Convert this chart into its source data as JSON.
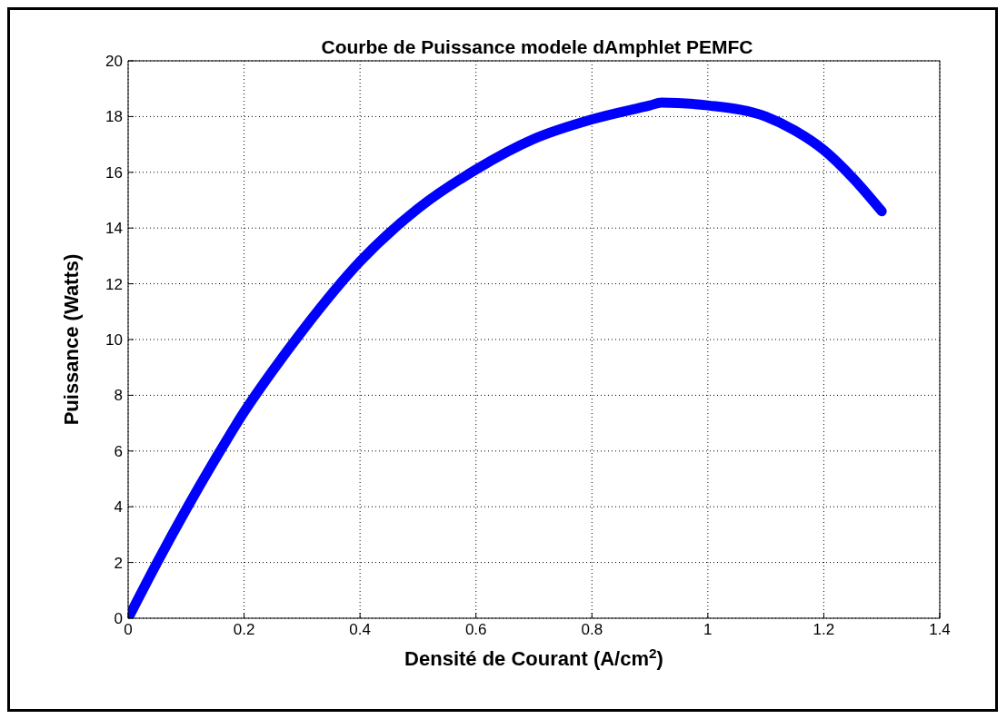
{
  "chart_data": {
    "type": "line",
    "title": "Courbe de Puissance modele dAmphlet PEMFC",
    "xlabel": "Densité de Courant (A/cm$^{2}$)",
    "ylabel": "Puissance (Watts)",
    "x": [
      0,
      0.05,
      0.1,
      0.15,
      0.2,
      0.25,
      0.3,
      0.4,
      0.5,
      0.6,
      0.7,
      0.8,
      0.9,
      0.92,
      1.0,
      1.1,
      1.15,
      1.2,
      1.25,
      1.3
    ],
    "series": [
      {
        "color": "#0000ff",
        "values": [
          0,
          2.0,
          3.9,
          5.7,
          7.4,
          8.9,
          10.3,
          12.8,
          14.7,
          16.1,
          17.2,
          17.9,
          18.4,
          18.5,
          18.4,
          18.0,
          17.5,
          16.8,
          15.8,
          14.6
        ]
      }
    ],
    "xlim": [
      0,
      1.4
    ],
    "xticks": [
      0,
      0.2,
      0.4,
      0.6,
      0.8,
      1,
      1.2,
      1.4
    ],
    "ylim": [
      0,
      20
    ],
    "yticks": [
      0,
      2,
      4,
      6,
      8,
      10,
      12,
      14,
      16,
      18,
      20
    ],
    "grid": true,
    "marker": "none"
  }
}
